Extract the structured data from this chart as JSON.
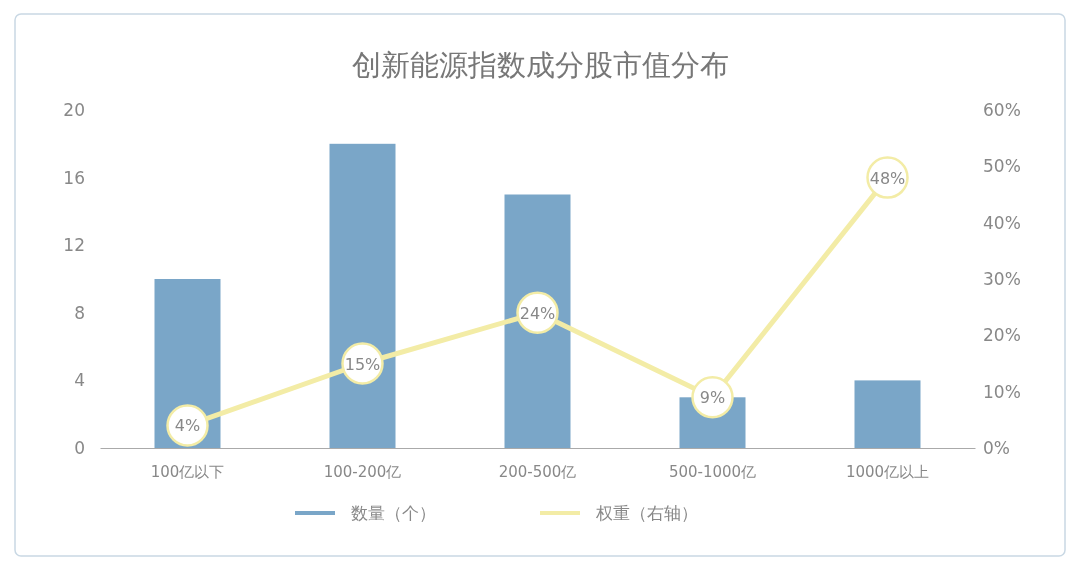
{
  "chart_data": {
    "type": "bar",
    "title": "创新能源指数成分股市值分布",
    "categories": [
      "100亿以下",
      "100-200亿",
      "200-500亿",
      "500-1000亿",
      "1000亿以上"
    ],
    "series": [
      {
        "name": "数量（个）",
        "color": "#7aa6c8",
        "values": [
          10,
          18,
          15,
          3,
          4
        ]
      },
      {
        "name": "权重（右轴）",
        "type": "line",
        "axis": "y2",
        "color": "#f3eca6",
        "marker": "circle",
        "values": [
          4,
          15,
          24,
          9,
          48
        ],
        "value_labels": [
          "4%",
          "15%",
          "24%",
          "9%",
          "48%"
        ]
      }
    ],
    "ylim": [
      0,
      20
    ],
    "yticks": [
      0,
      4,
      8,
      12,
      16,
      20
    ],
    "y2lim": [
      0,
      60
    ],
    "y2ticks": [
      {
        "value": 0,
        "label": "0%"
      },
      {
        "value": 10,
        "label": "10%"
      },
      {
        "value": 20,
        "label": "20%"
      },
      {
        "value": 30,
        "label": "30%"
      },
      {
        "value": 40,
        "label": "40%"
      },
      {
        "value": 50,
        "label": "50%"
      },
      {
        "value": 60,
        "label": "60%"
      }
    ],
    "grid": false,
    "legend": "bottom"
  }
}
